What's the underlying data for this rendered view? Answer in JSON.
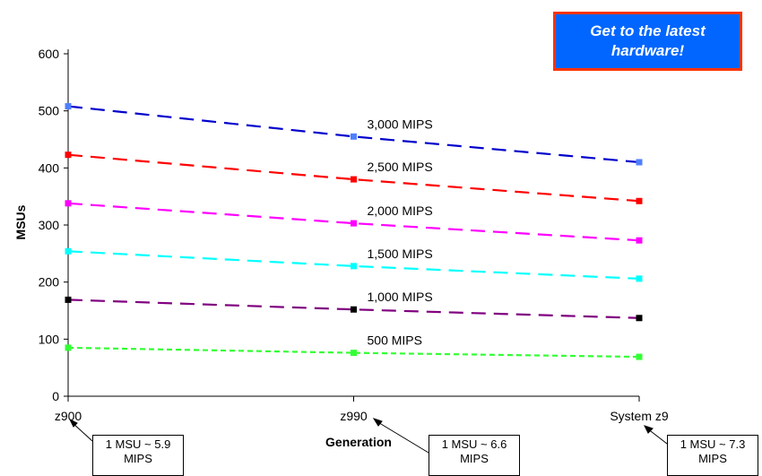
{
  "chart_data": {
    "type": "line",
    "xlabel": "Generation",
    "ylabel": "MSUs",
    "categories": [
      "z900",
      "z990",
      "System z9"
    ],
    "ylim": [
      0,
      600
    ],
    "yticks": [
      "0",
      "100",
      "200",
      "300",
      "400",
      "500",
      "600"
    ],
    "grid": false,
    "series": [
      {
        "name": "3,000 MIPS",
        "values": [
          508,
          455,
          410
        ],
        "color": "#0000cc",
        "marker_color": "#4f7fff"
      },
      {
        "name": "2,500 MIPS",
        "values": [
          423,
          380,
          342
        ],
        "color": "#ff0000",
        "marker_color": "#ff0000"
      },
      {
        "name": "2,000 MIPS",
        "values": [
          338,
          303,
          273
        ],
        "color": "#ff00ff",
        "marker_color": "#ff00ff"
      },
      {
        "name": "1,500 MIPS",
        "values": [
          254,
          228,
          206
        ],
        "color": "#00ffff",
        "marker_color": "#00ffff"
      },
      {
        "name": "1,000 MIPS",
        "values": [
          169,
          152,
          137
        ],
        "color": "#800080",
        "marker_color": "#000000"
      },
      {
        "name": "500 MIPS",
        "values": [
          85,
          76,
          69
        ],
        "color": "#33ff33",
        "marker_color": "#33ff33"
      }
    ]
  },
  "banner": {
    "line1": "Get to the latest",
    "line2": "hardware!"
  },
  "callouts": [
    {
      "line1": "1 MSU ~ 5.9",
      "line2": "MIPS"
    },
    {
      "line1": "1 MSU ~ 6.6",
      "line2": "MIPS"
    },
    {
      "line1": "1 MSU ~ 7.3",
      "line2": "MIPS"
    }
  ]
}
